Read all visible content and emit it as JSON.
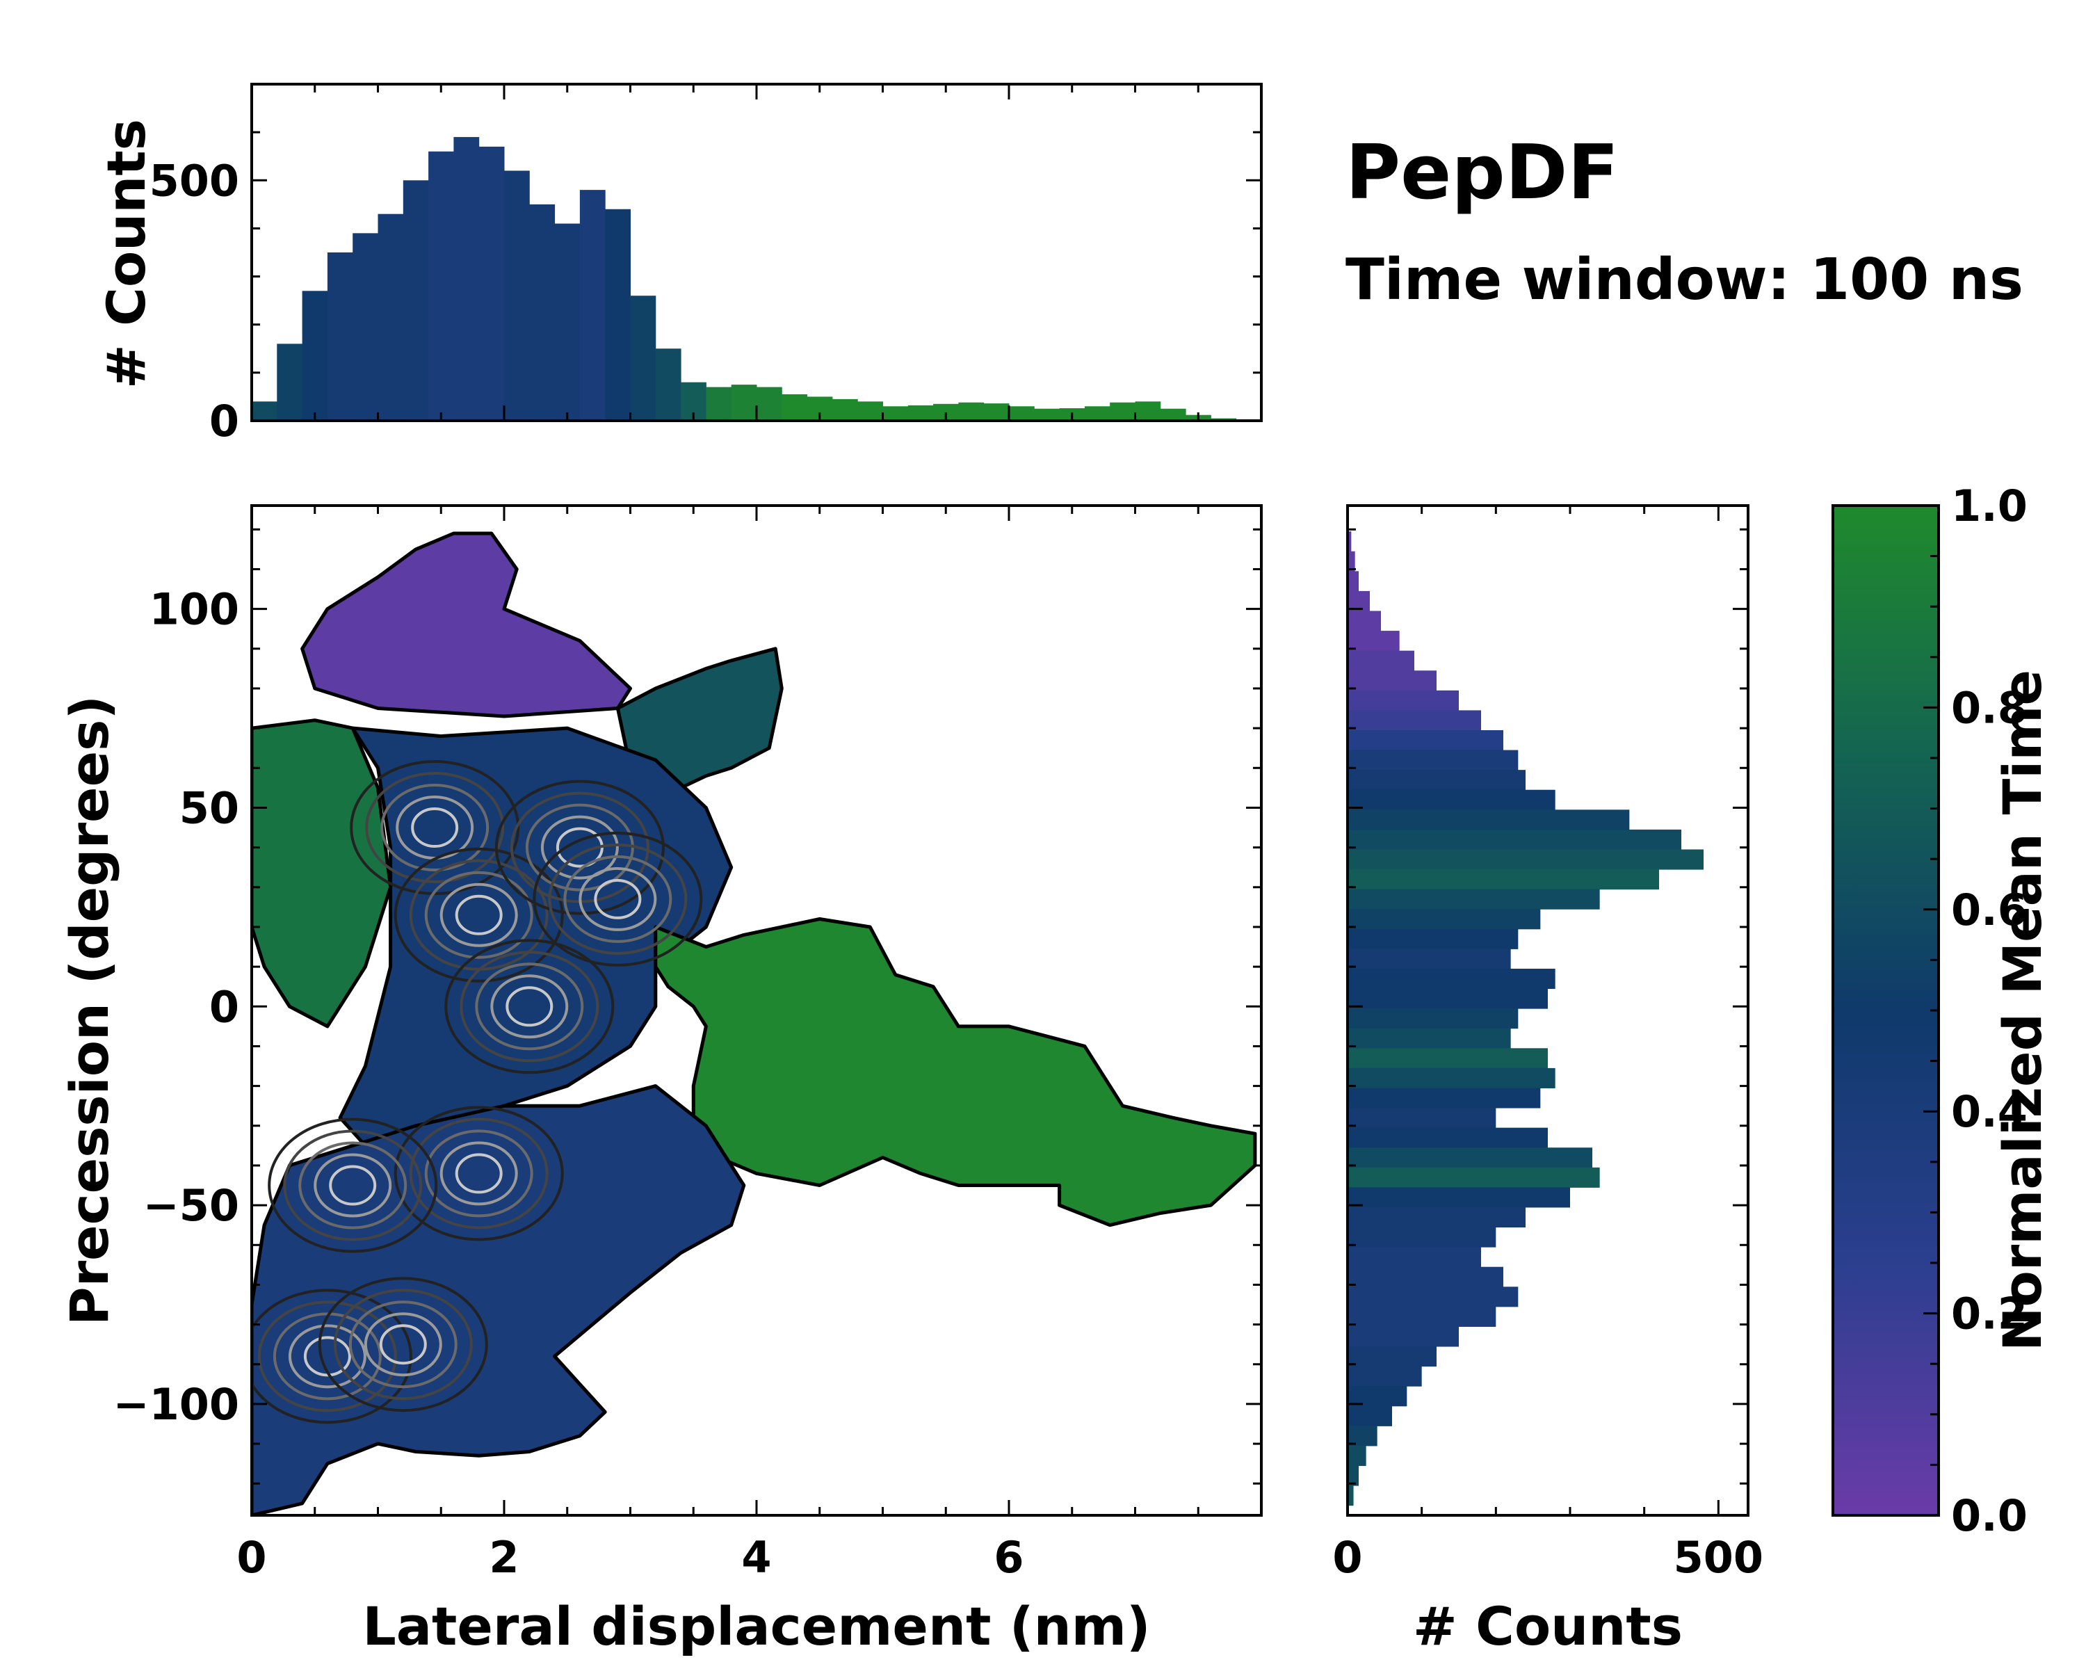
{
  "chart_data": [
    {
      "id": "top-histogram",
      "type": "bar",
      "ylabel": "# Counts",
      "xlim": [
        0,
        8
      ],
      "ylim": [
        0,
        700
      ],
      "yticks": [
        0,
        500
      ],
      "bin_centers_nm": [
        0.1,
        0.3,
        0.5,
        0.7,
        0.9,
        1.1,
        1.3,
        1.5,
        1.7,
        1.9,
        2.1,
        2.3,
        2.5,
        2.7,
        2.9,
        3.1,
        3.3,
        3.5,
        3.7,
        3.9,
        4.1,
        4.3,
        4.5,
        4.7,
        4.9,
        5.1,
        5.3,
        5.5,
        5.7,
        5.9,
        6.1,
        6.3,
        6.5,
        6.7,
        6.9,
        7.1,
        7.3,
        7.5,
        7.7,
        7.9
      ],
      "counts": [
        40,
        160,
        270,
        350,
        390,
        430,
        500,
        560,
        590,
        570,
        520,
        450,
        410,
        480,
        440,
        260,
        150,
        80,
        70,
        75,
        70,
        55,
        50,
        45,
        40,
        30,
        32,
        35,
        38,
        36,
        30,
        25,
        26,
        30,
        38,
        40,
        25,
        12,
        5,
        0
      ],
      "color_value": [
        0.6,
        0.55,
        0.5,
        0.45,
        0.45,
        0.45,
        0.45,
        0.4,
        0.4,
        0.4,
        0.45,
        0.45,
        0.45,
        0.4,
        0.5,
        0.55,
        0.6,
        0.7,
        0.9,
        0.95,
        0.95,
        1,
        1,
        1,
        1,
        1,
        1,
        1,
        1,
        1,
        1,
        1,
        1,
        1,
        1,
        1,
        1,
        1,
        1,
        1
      ]
    },
    {
      "id": "main-heatmap",
      "type": "heatmap",
      "xlabel": "Lateral displacement (nm)",
      "ylabel": "Precession (degrees)",
      "xlim": [
        0,
        8
      ],
      "ylim": [
        -128,
        126
      ],
      "xticks": [
        0,
        2,
        4,
        6
      ],
      "yticks": [
        100,
        50,
        0,
        -50,
        -100
      ],
      "ytick_labels": [
        "100",
        "50",
        "0",
        "−50",
        "−100"
      ],
      "colorbar_label": "Normalized Mean Time",
      "regions": [
        {
          "name": "purple-top-lobe",
          "value": 0.05,
          "polygon": [
            [
              0.4,
              90
            ],
            [
              0.6,
              100
            ],
            [
              1.0,
              108
            ],
            [
              1.3,
              115
            ],
            [
              1.6,
              119
            ],
            [
              1.9,
              119
            ],
            [
              2.1,
              110
            ],
            [
              2.0,
              100
            ],
            [
              2.6,
              92
            ],
            [
              3.0,
              80
            ],
            [
              2.9,
              75
            ],
            [
              2.0,
              73
            ],
            [
              1.0,
              75
            ],
            [
              0.5,
              80
            ]
          ]
        },
        {
          "name": "teal-upper-arm",
          "value": 0.65,
          "polygon": [
            [
              2.9,
              75
            ],
            [
              3.2,
              80
            ],
            [
              3.6,
              85
            ],
            [
              3.8,
              87
            ],
            [
              4.15,
              90
            ],
            [
              4.2,
              80
            ],
            [
              4.1,
              65
            ],
            [
              3.8,
              60
            ],
            [
              3.6,
              58
            ],
            [
              3.4,
              55
            ],
            [
              3.0,
              60
            ]
          ]
        },
        {
          "name": "green-left-strip",
          "value": 0.85,
          "polygon": [
            [
              0,
              70
            ],
            [
              0.5,
              72
            ],
            [
              0.8,
              70
            ],
            [
              1.0,
              55
            ],
            [
              1.1,
              30
            ],
            [
              0.9,
              10
            ],
            [
              0.6,
              -5
            ],
            [
              0.3,
              0
            ],
            [
              0.1,
              10
            ],
            [
              0,
              20
            ]
          ]
        },
        {
          "name": "upper-mixed-center",
          "value": 0.45,
          "polygon": [
            [
              0.8,
              70
            ],
            [
              1.5,
              68
            ],
            [
              2.5,
              70
            ],
            [
              3.2,
              62
            ],
            [
              3.6,
              50
            ],
            [
              3.8,
              35
            ],
            [
              3.6,
              20
            ],
            [
              3.2,
              10
            ],
            [
              3.2,
              0
            ],
            [
              3.0,
              -10
            ],
            [
              2.5,
              -20
            ],
            [
              2.0,
              -25
            ],
            [
              1.5,
              -30
            ],
            [
              1.2,
              -35
            ],
            [
              0.9,
              -35
            ],
            [
              0.7,
              -28
            ],
            [
              0.9,
              -15
            ],
            [
              1.1,
              10
            ],
            [
              1.1,
              40
            ],
            [
              1.0,
              60
            ]
          ]
        },
        {
          "name": "green-right-arm",
          "value": 0.98,
          "polygon": [
            [
              3.2,
              20
            ],
            [
              3.6,
              15
            ],
            [
              3.9,
              18
            ],
            [
              4.5,
              22
            ],
            [
              4.9,
              20
            ],
            [
              5.1,
              8
            ],
            [
              5.4,
              5
            ],
            [
              5.6,
              -5
            ],
            [
              6.0,
              -5
            ],
            [
              6.6,
              -10
            ],
            [
              6.9,
              -25
            ],
            [
              7.3,
              -28
            ],
            [
              7.6,
              -30
            ],
            [
              7.95,
              -32
            ],
            [
              7.95,
              -40
            ],
            [
              7.6,
              -50
            ],
            [
              7.2,
              -52
            ],
            [
              6.8,
              -55
            ],
            [
              6.4,
              -50
            ],
            [
              6.4,
              -45
            ],
            [
              5.6,
              -45
            ],
            [
              5.3,
              -42
            ],
            [
              5.0,
              -38
            ],
            [
              4.5,
              -45
            ],
            [
              4.0,
              -42
            ],
            [
              3.7,
              -38
            ],
            [
              3.5,
              -28
            ],
            [
              3.5,
              -20
            ],
            [
              3.6,
              -5
            ],
            [
              3.5,
              0
            ],
            [
              3.3,
              5
            ],
            [
              3.2,
              10
            ]
          ]
        },
        {
          "name": "lower-blue-lobe",
          "value": 0.4,
          "polygon": [
            [
              0.3,
              -40
            ],
            [
              0.8,
              -35
            ],
            [
              1.3,
              -30
            ],
            [
              2.0,
              -25
            ],
            [
              2.6,
              -25
            ],
            [
              3.2,
              -20
            ],
            [
              3.6,
              -30
            ],
            [
              3.9,
              -45
            ],
            [
              3.8,
              -55
            ],
            [
              3.4,
              -62
            ],
            [
              3.0,
              -72
            ],
            [
              2.7,
              -80
            ],
            [
              2.4,
              -88
            ],
            [
              2.6,
              -95
            ],
            [
              2.8,
              -102
            ],
            [
              2.6,
              -108
            ],
            [
              2.2,
              -112
            ],
            [
              1.8,
              -113
            ],
            [
              1.3,
              -112
            ],
            [
              1.0,
              -110
            ],
            [
              0.6,
              -115
            ],
            [
              0.4,
              -125
            ],
            [
              0,
              -128
            ],
            [
              0,
              -75
            ],
            [
              0.1,
              -55
            ]
          ]
        }
      ],
      "contour_peaks": [
        [
          1.45,
          45
        ],
        [
          1.8,
          23
        ],
        [
          2.6,
          40
        ],
        [
          2.9,
          27
        ],
        [
          2.2,
          0
        ],
        [
          1.8,
          -42
        ],
        [
          0.8,
          -45
        ],
        [
          0.6,
          -88
        ],
        [
          1.2,
          -85
        ]
      ]
    },
    {
      "id": "right-histogram",
      "type": "bar",
      "orientation": "horizontal",
      "xlabel": "# Counts",
      "xlim": [
        0,
        540
      ],
      "ylim": [
        -128,
        126
      ],
      "xticks": [
        0,
        500
      ],
      "bin_centers_deg": [
        117,
        112,
        107,
        102,
        97,
        92,
        87,
        82,
        77,
        72,
        67,
        62,
        57,
        52,
        47,
        42,
        37,
        32,
        27,
        22,
        17,
        12,
        7,
        2,
        -3,
        -8,
        -13,
        -18,
        -23,
        -28,
        -33,
        -38,
        -43,
        -48,
        -53,
        -58,
        -63,
        -68,
        -73,
        -78,
        -83,
        -88,
        -93,
        -98,
        -103,
        -108,
        -113,
        -118,
        -123
      ],
      "counts": [
        5,
        10,
        15,
        30,
        45,
        70,
        90,
        120,
        150,
        180,
        210,
        230,
        240,
        280,
        380,
        450,
        480,
        420,
        340,
        260,
        230,
        220,
        280,
        270,
        230,
        220,
        270,
        280,
        260,
        200,
        270,
        330,
        340,
        300,
        240,
        200,
        180,
        210,
        230,
        200,
        150,
        120,
        100,
        80,
        60,
        40,
        25,
        15,
        8
      ],
      "color_value": [
        0.05,
        0.05,
        0.05,
        0.05,
        0.05,
        0.05,
        0.1,
        0.1,
        0.15,
        0.2,
        0.3,
        0.4,
        0.45,
        0.5,
        0.55,
        0.6,
        0.65,
        0.7,
        0.6,
        0.55,
        0.5,
        0.45,
        0.5,
        0.5,
        0.55,
        0.6,
        0.7,
        0.6,
        0.5,
        0.45,
        0.5,
        0.6,
        0.7,
        0.5,
        0.45,
        0.45,
        0.4,
        0.4,
        0.4,
        0.4,
        0.4,
        0.45,
        0.45,
        0.5,
        0.5,
        0.55,
        0.6,
        0.6,
        0.65
      ]
    },
    {
      "id": "colorbar",
      "type": "colorbar",
      "label": "Normalized Mean Time",
      "ticks": [
        0.0,
        0.2,
        0.4,
        0.6,
        0.8,
        1.0
      ],
      "tick_labels": [
        "0.0",
        "0.2",
        "0.4",
        "0.6",
        "0.8",
        "1.0"
      ],
      "stops": [
        "#6a3ba8",
        "#2b3f8f",
        "#0f3a6b",
        "#146452",
        "#1f8a2c"
      ]
    }
  ],
  "annotations": {
    "title": "PepDF",
    "subtitle": "Time window: 100 ns"
  }
}
